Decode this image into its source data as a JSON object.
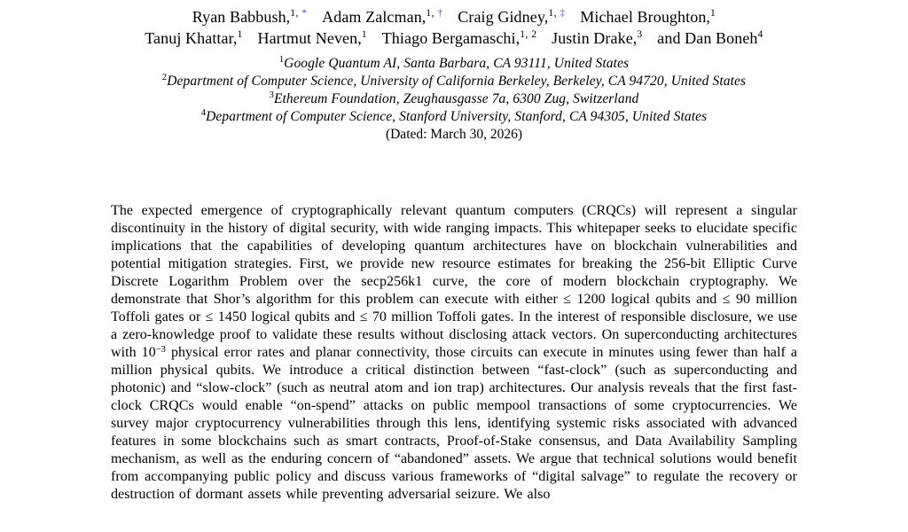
{
  "page": {
    "colors": {
      "background": "#ffffff",
      "text": "#000000",
      "footnote_link": "#4a4ac2"
    }
  },
  "authors": {
    "line1": [
      {
        "name": "Ryan Babbush,",
        "sup": "1, ",
        "sym": "*"
      },
      {
        "name": "Adam Zalcman,",
        "sup": "1, ",
        "sym": "†"
      },
      {
        "name": "Craig Gidney,",
        "sup": "1, ",
        "sym": "‡"
      },
      {
        "name": "Michael Broughton,",
        "sup": "1",
        "sym": ""
      }
    ],
    "line2": [
      {
        "name": "Tanuj Khattar,",
        "sup": "1",
        "sym": ""
      },
      {
        "name": "Hartmut Neven,",
        "sup": "1",
        "sym": ""
      },
      {
        "name": "Thiago Bergamaschi,",
        "sup": "1, 2",
        "sym": ""
      },
      {
        "name": "Justin Drake,",
        "sup": "3",
        "sym": ""
      },
      {
        "name": "and Dan Boneh",
        "sup": "4",
        "sym": ""
      }
    ]
  },
  "affiliations": [
    {
      "sup": "1",
      "text": "Google Quantum AI, Santa Barbara, CA 93111, United States"
    },
    {
      "sup": "2",
      "text": "Department of Computer Science, University of California Berkeley, Berkeley, CA 94720, United States"
    },
    {
      "sup": "3",
      "text": "Ethereum Foundation, Zeughausgasse 7a, 6300 Zug, Switzerland"
    },
    {
      "sup": "4",
      "text": "Department of Computer Science, Stanford University, Stanford, CA 94305, United States"
    }
  ],
  "dated": "(Dated: March 30, 2026)",
  "abstract": {
    "part1": "The expected emergence of cryptographically relevant quantum computers (CRQCs) will represent a singular discontinuity in the history of digital security, with wide ranging impacts.  This whitepaper seeks to elucidate specific implications that the capabilities of developing quantum architectures have on blockchain vulnerabilities and potential mitigation strategies.  First, we provide new resource estimates for breaking the 256-bit Elliptic Curve Discrete Logarithm Problem over the secp256k1 curve, the core of modern blockchain cryptography.  We demonstrate that Shor’s algorithm for this problem can execute with either ≤ 1200 logical qubits and ≤ 90 million Toffoli gates or ≤ 1450 logical qubits and ≤ 70 million Toffoli gates.  In the interest of responsible disclosure, we use a zero-knowledge proof to validate these results without disclosing attack vectors.  On superconducting architectures with 10",
    "exponent": "−3",
    "part2": " physical error rates and planar connectivity, those circuits can execute in minutes using fewer than half a million physical qubits.  We introduce a critical distinction between “fast-clock” (such as superconducting and photonic) and “slow-clock” (such as neutral atom and ion trap) architectures.  Our analysis reveals that the first fast-clock CRQCs would enable “on-spend” attacks on public mempool transactions of some cryptocurrencies.  We survey major cryptocurrency vulnerabilities through this lens, identifying systemic risks associated with advanced features in some blockchains such as smart contracts, Proof-of-Stake consensus, and Data Availability Sampling mechanism, as well as the enduring concern of “abandoned” assets.  We argue that technical solutions would benefit from accompanying public policy and discuss various frameworks of “digital salvage” to regulate the recovery or destruction of dormant assets while preventing adversarial seizure.  We also"
  }
}
